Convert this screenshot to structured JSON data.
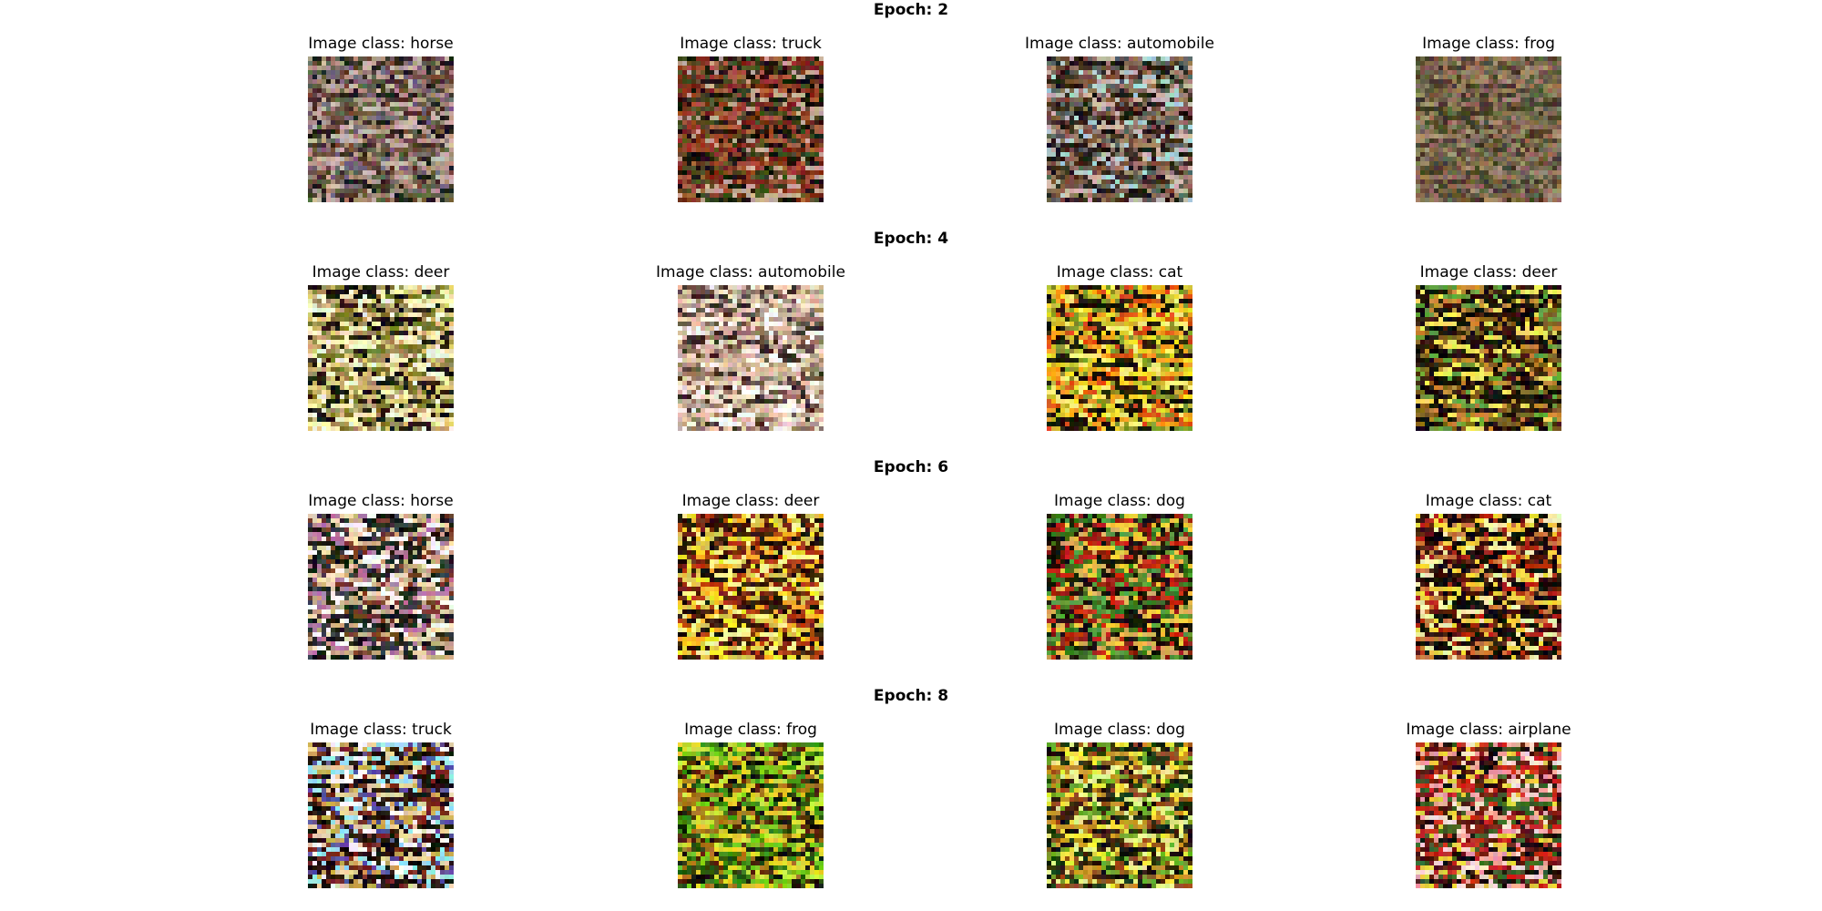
{
  "figure": {
    "rows": [
      {
        "epoch_label": "Epoch: 2",
        "images": [
          {
            "title": "Image class: horse",
            "palette": "muted-brown"
          },
          {
            "title": "Image class: truck",
            "palette": "dark-red"
          },
          {
            "title": "Image class: automobile",
            "palette": "teal-brown"
          },
          {
            "title": "Image class: frog",
            "palette": "olive-brown"
          }
        ]
      },
      {
        "epoch_label": "Epoch: 4",
        "images": [
          {
            "title": "Image class: deer",
            "palette": "yellow-green"
          },
          {
            "title": "Image class: automobile",
            "palette": "pale-beige"
          },
          {
            "title": "Image class: cat",
            "palette": "orange-yellow"
          },
          {
            "title": "Image class: deer",
            "palette": "dark-yellow"
          }
        ]
      },
      {
        "epoch_label": "Epoch: 6",
        "images": [
          {
            "title": "Image class: horse",
            "palette": "bright-mixed"
          },
          {
            "title": "Image class: deer",
            "palette": "yellow-red"
          },
          {
            "title": "Image class: dog",
            "palette": "red-green"
          },
          {
            "title": "Image class: cat",
            "palette": "red-yellow-dark"
          }
        ]
      },
      {
        "epoch_label": "Epoch: 8",
        "images": [
          {
            "title": "Image class: truck",
            "palette": "cyan-bright"
          },
          {
            "title": "Image class: frog",
            "palette": "green-yellow"
          },
          {
            "title": "Image class: dog",
            "palette": "yellow-green-dark"
          },
          {
            "title": "Image class: airplane",
            "palette": "red-pink"
          }
        ]
      }
    ]
  }
}
